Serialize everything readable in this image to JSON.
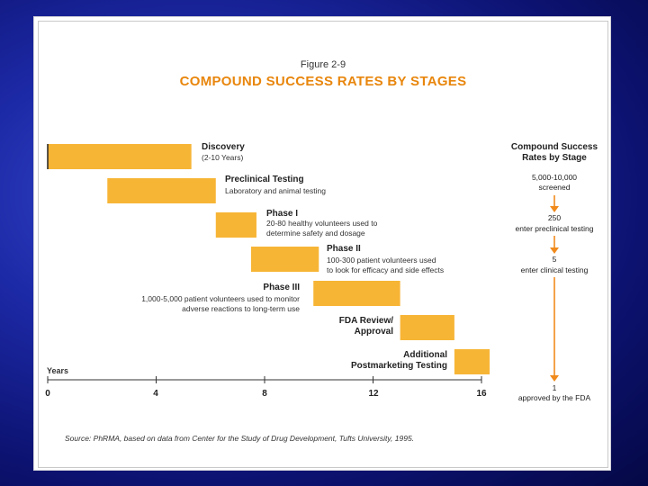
{
  "figure_number": "Figure 2-9",
  "title": "COMPOUND SUCCESS RATES BY STAGES",
  "chart_data": {
    "type": "bar",
    "orientation": "horizontal-gantt",
    "xlabel": "Years",
    "xlim": [
      0,
      16
    ],
    "xticks": [
      0,
      4,
      8,
      12,
      16
    ],
    "bar_color": "#f7b536",
    "stages": [
      {
        "name": "Discovery",
        "desc1": "(2-10 Years)",
        "desc2": "",
        "start": 0,
        "end": 5.3
      },
      {
        "name": "Preclinical Testing",
        "desc1": "Laboratory and animal testing",
        "desc2": "",
        "start": 2.2,
        "end": 6.2
      },
      {
        "name": "Phase I",
        "desc1": "20-80 healthy volunteers used to",
        "desc2": "determine safety and dosage",
        "start": 6.2,
        "end": 7.7
      },
      {
        "name": "Phase II",
        "desc1": "100-300 patient volunteers used",
        "desc2": "to look for efficacy and side effects",
        "start": 7.5,
        "end": 10
      },
      {
        "name": "Phase III",
        "desc1": "1,000-5,000 patient volunteers used to monitor",
        "desc2": "adverse reactions to long-term use",
        "start": 9.8,
        "end": 13
      },
      {
        "name": "FDA Review/",
        "desc1": "Approval",
        "desc2": "",
        "start": 13,
        "end": 15
      },
      {
        "name": "Additional",
        "desc1": "Postmarketing Testing",
        "desc2": "",
        "start": 15,
        "end": 16.3
      }
    ]
  },
  "panel": {
    "title": "Compound Success Rates by Stage",
    "steps": [
      {
        "count": "5,000-10,000",
        "label": "screened"
      },
      {
        "count": "250",
        "label": "enter preclinical testing"
      },
      {
        "count": "5",
        "label": "enter clinical testing"
      },
      {
        "count": "1",
        "label": "approved by the FDA"
      }
    ],
    "arrow_color": "#f08a1c"
  },
  "source": "Source: PhRMA, based on data from Center for the Study of Drug Development, Tufts University, 1995."
}
